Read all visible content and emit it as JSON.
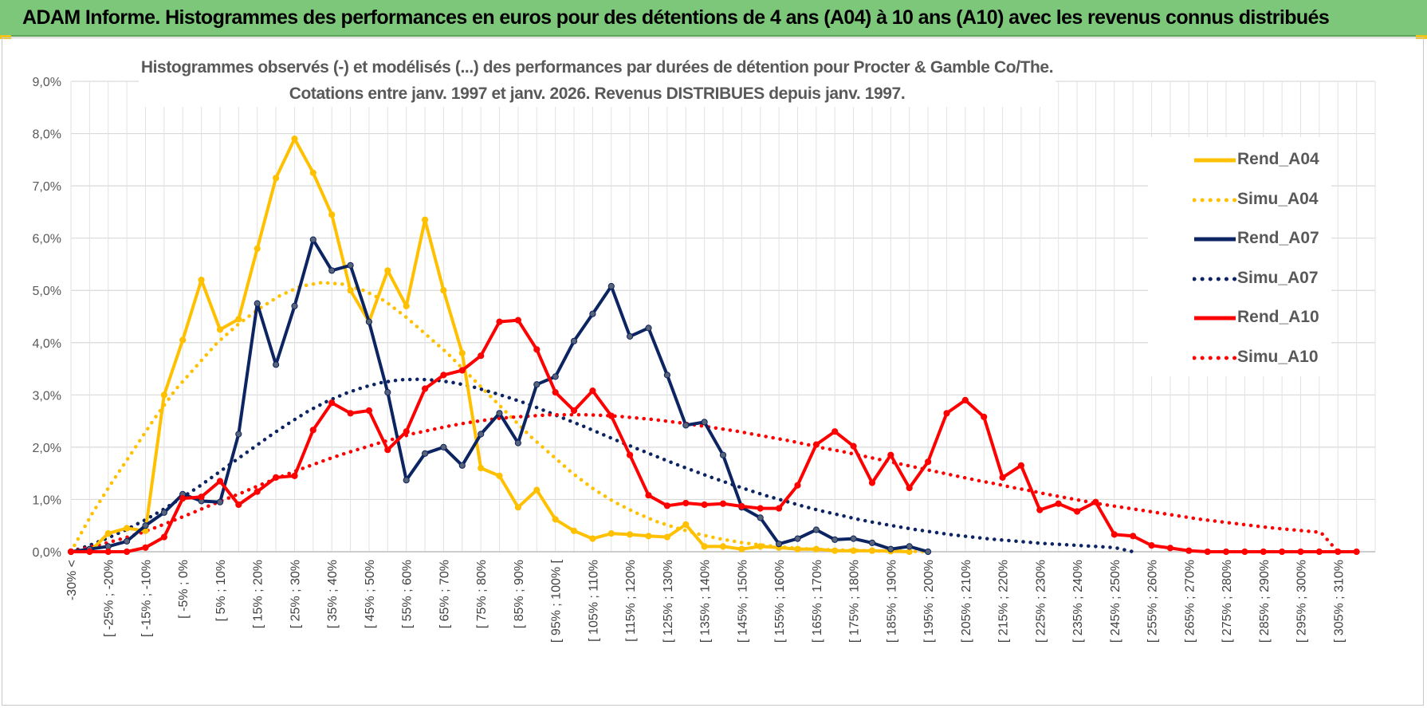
{
  "header": {
    "title": "ADAM Informe. Histogrammes des performances en euros pour des détentions de 4 ans (A04) à 10 ans (A10) avec les revenus connus distribués"
  },
  "chart_data": {
    "type": "line",
    "title": "",
    "subtitle_lines": [
      "Histogrammes observés (-) et modélisés (...) des performances par durées de détention pour Procter & Gamble Co/The.",
      "Cotations entre janv. 1997 et janv. 2026. Revenus DISTRIBUES depuis janv. 1997."
    ],
    "xlabel": "",
    "ylabel": "",
    "ylim": [
      0,
      9
    ],
    "y_ticks": [
      "0,0%",
      "1,0%",
      "2,0%",
      "3,0%",
      "4,0%",
      "5,0%",
      "6,0%",
      "7,0%",
      "8,0%",
      "9,0%"
    ],
    "grid": true,
    "legend_position": "right",
    "x_labels": [
      "-30% <",
      "[ -25% ; -20%",
      "[ -15% ; -10%",
      "[ -5% ; 0%",
      "[ 5% ; 10%",
      "[ 15% ; 20%",
      "[ 25% ; 30%",
      "[ 35% ; 40%",
      "[ 45% ; 50%",
      "[ 55% ; 60%",
      "[ 65% ; 70%",
      "[ 75% ; 80%",
      "[ 85% ; 90%",
      "[ 95% ; 100% [",
      "[ 105% ; 110%",
      "[ 115% ; 120%",
      "[ 125% ; 130%",
      "[ 135% ; 140%",
      "[ 145% ; 150%",
      "[ 155% ; 160%",
      "[ 165% ; 170%",
      "[ 175% ; 180%",
      "[ 185% ; 190%",
      "[ 195% ; 200%",
      "[ 205% ; 210%",
      "[ 215% ; 220%",
      "[ 225% ; 230%",
      "[ 235% ; 240%",
      "[ 245% ; 250%",
      "[ 255% ; 260%",
      "[ 265% ; 270%",
      "[ 275% ; 280%",
      "[ 285% ; 290%",
      "[ 295% ; 300%",
      "[ 305% ; 310%"
    ],
    "series": [
      {
        "name": "Rend_A04",
        "style": "solid",
        "color": "#ffc000",
        "values": [
          0.0,
          0.0,
          0.35,
          0.45,
          0.4,
          3.0,
          4.05,
          5.2,
          4.25,
          4.45,
          5.8,
          7.15,
          7.9,
          7.25,
          6.45,
          5.0,
          4.4,
          5.38,
          4.7,
          6.35,
          5.0,
          3.8,
          1.6,
          1.45,
          0.85,
          1.18,
          0.62,
          0.4,
          0.25,
          0.35,
          0.33,
          0.3,
          0.28,
          0.52,
          0.1,
          0.1,
          0.05,
          0.1,
          0.08,
          0.05,
          0.05,
          0.02,
          0.02,
          0.02,
          0.01,
          0.0
        ]
      },
      {
        "name": "Simu_A04",
        "style": "dotted",
        "color": "#ffc000",
        "values": [
          0.0,
          0.72,
          1.35,
          1.95,
          2.55,
          3.1,
          3.55,
          4.0,
          4.35,
          4.65,
          4.9,
          5.08,
          5.15,
          5.12,
          5.0,
          4.8,
          4.5,
          4.15,
          3.8,
          3.4,
          3.0,
          2.6,
          2.2,
          1.85,
          1.5,
          1.2,
          0.95,
          0.75,
          0.58,
          0.45,
          0.34,
          0.25,
          0.18,
          0.13,
          0.09,
          0.06,
          0.04,
          0.03,
          0.02,
          0.01,
          0.01,
          0.0
        ]
      },
      {
        "name": "Rend_A07",
        "style": "solid",
        "color": "#0c2461",
        "values": [
          0.0,
          0.05,
          0.1,
          0.2,
          0.5,
          0.75,
          1.1,
          0.97,
          0.95,
          2.25,
          4.75,
          3.58,
          4.7,
          5.97,
          5.38,
          5.48,
          4.4,
          3.05,
          1.37,
          1.88,
          2.0,
          1.65,
          2.25,
          2.65,
          2.08,
          3.2,
          3.35,
          4.03,
          4.55,
          5.08,
          4.12,
          4.28,
          3.38,
          2.42,
          2.48,
          1.85,
          0.85,
          0.65,
          0.15,
          0.25,
          0.42,
          0.23,
          0.25,
          0.17,
          0.05,
          0.1,
          0.0
        ]
      },
      {
        "name": "Simu_A07",
        "style": "dotted",
        "color": "#0c2461",
        "values": [
          0.0,
          0.12,
          0.26,
          0.42,
          0.6,
          0.8,
          1.02,
          1.25,
          1.5,
          1.75,
          2.0,
          2.25,
          2.48,
          2.7,
          2.88,
          3.03,
          3.15,
          3.24,
          3.29,
          3.3,
          3.28,
          3.23,
          3.15,
          3.05,
          2.94,
          2.82,
          2.68,
          2.54,
          2.4,
          2.25,
          2.1,
          1.96,
          1.82,
          1.68,
          1.55,
          1.42,
          1.3,
          1.18,
          1.07,
          0.97,
          0.87,
          0.78,
          0.7,
          0.62,
          0.55,
          0.49,
          0.43,
          0.38,
          0.33,
          0.29,
          0.25,
          0.22,
          0.19,
          0.16,
          0.14,
          0.12,
          0.1,
          0.08,
          0.0
        ]
      },
      {
        "name": "Rend_A10",
        "style": "solid",
        "color": "#ff0000",
        "values": [
          0.0,
          0.0,
          0.0,
          0.0,
          0.08,
          0.28,
          1.02,
          1.05,
          1.35,
          0.9,
          1.15,
          1.42,
          1.45,
          2.33,
          2.85,
          2.65,
          2.7,
          1.95,
          2.3,
          3.12,
          3.38,
          3.47,
          3.75,
          4.4,
          4.43,
          3.87,
          3.05,
          2.7,
          3.08,
          2.6,
          1.85,
          1.08,
          0.88,
          0.93,
          0.9,
          0.92,
          0.87,
          0.83,
          0.83,
          1.27,
          2.05,
          2.3,
          2.02,
          1.32,
          1.85,
          1.22,
          1.72,
          2.65,
          2.9,
          2.58,
          1.42,
          1.65,
          0.8,
          0.92,
          0.77,
          0.95,
          0.33,
          0.3,
          0.12,
          0.07,
          0.02,
          0.0,
          0.0,
          0.0,
          0.0,
          0.0,
          0.0,
          0.0,
          0.0,
          0.0
        ]
      },
      {
        "name": "Simu_A10",
        "style": "dotted",
        "color": "#ff0000",
        "values": [
          0.0,
          0.08,
          0.16,
          0.25,
          0.35,
          0.47,
          0.6,
          0.73,
          0.87,
          1.0,
          1.13,
          1.27,
          1.4,
          1.53,
          1.65,
          1.77,
          1.88,
          1.98,
          2.08,
          2.17,
          2.26,
          2.33,
          2.4,
          2.46,
          2.51,
          2.55,
          2.58,
          2.6,
          2.62,
          2.62,
          2.62,
          2.61,
          2.59,
          2.56,
          2.53,
          2.49,
          2.45,
          2.4,
          2.35,
          2.3,
          2.24,
          2.18,
          2.12,
          2.05,
          1.98,
          1.92,
          1.85,
          1.78,
          1.71,
          1.64,
          1.57,
          1.5,
          1.43,
          1.36,
          1.3,
          1.23,
          1.17,
          1.1,
          1.04,
          0.98,
          0.92,
          0.87,
          0.82,
          0.77,
          0.72,
          0.67,
          0.62,
          0.58,
          0.54,
          0.5,
          0.46,
          0.43,
          0.4,
          0.37,
          0.0
        ]
      }
    ]
  }
}
